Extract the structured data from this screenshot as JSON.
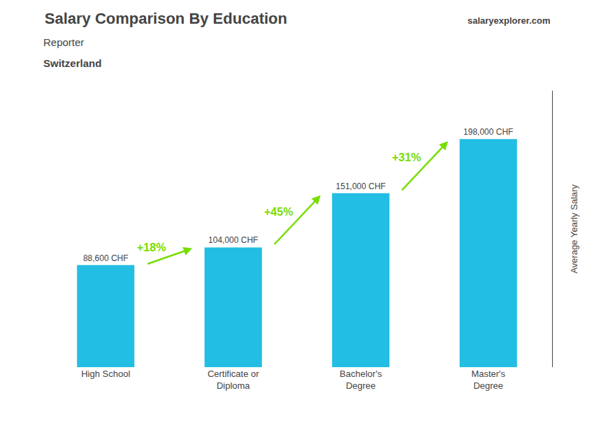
{
  "chart_data": {
    "type": "bar",
    "title": "Salary Comparison By Education",
    "subtitle": "Reporter",
    "categories": [
      "High School",
      "Certificate or\nDiploma",
      "Bachelor's\nDegree",
      "Master's\nDegree"
    ],
    "values": [
      88600,
      104000,
      151000,
      198000
    ],
    "value_labels": [
      "88,600 CHF",
      "104,000 CHF",
      "151,000 CHF",
      "198,000 CHF"
    ],
    "data_labels": true,
    "color": "#23bee3",
    "ylabel": "Average Yearly Salary",
    "ylim": [
      0,
      240000
    ],
    "tick_labels": "x",
    "grid": false,
    "annotations": [
      {
        "text": "Switzerland"
      },
      {
        "text": "salaryexplorer.com"
      },
      {
        "text": "+18%",
        "from": "High School",
        "to": "Certificate or\nDiploma",
        "color": "#77dd00"
      },
      {
        "text": "+45%",
        "from": "Certificate or\nDiploma",
        "to": "Bachelor's\nDegree",
        "color": "#77dd00"
      },
      {
        "text": "+31%",
        "from": "Bachelor's\nDegree",
        "to": "Master's\nDegree",
        "color": "#77dd00"
      }
    ]
  }
}
